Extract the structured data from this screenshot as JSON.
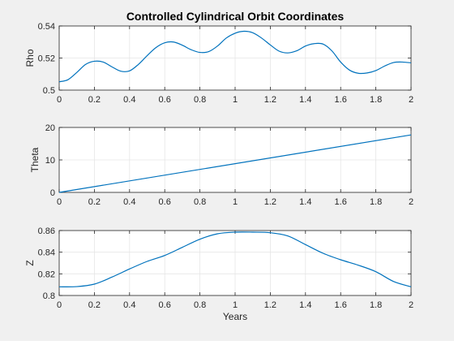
{
  "figure": {
    "background": "#f0f0f0",
    "axes_background": "#ffffff",
    "line_color": "#0072bd"
  },
  "chart_data": [
    {
      "type": "line",
      "title": "Controlled Cylindrical Orbit Coordinates",
      "xlabel": "",
      "ylabel": "Rho",
      "xlim": [
        0,
        2
      ],
      "ylim": [
        0.5,
        0.54
      ],
      "xticks": [
        "0",
        "0.2",
        "0.4",
        "0.6",
        "0.8",
        "1",
        "1.2",
        "1.4",
        "1.6",
        "1.8",
        "2"
      ],
      "yticks": [
        "0.5",
        "0.52",
        "0.54"
      ],
      "grid": true,
      "x": [
        0,
        0.05,
        0.1,
        0.15,
        0.2,
        0.25,
        0.3,
        0.35,
        0.4,
        0.45,
        0.5,
        0.55,
        0.6,
        0.65,
        0.7,
        0.75,
        0.8,
        0.85,
        0.9,
        0.95,
        1.0,
        1.05,
        1.1,
        1.15,
        1.2,
        1.25,
        1.3,
        1.35,
        1.4,
        1.45,
        1.5,
        1.55,
        1.6,
        1.65,
        1.7,
        1.75,
        1.8,
        1.85,
        1.9,
        1.95,
        2.0
      ],
      "y": [
        0.5052,
        0.5065,
        0.511,
        0.516,
        0.518,
        0.5175,
        0.5145,
        0.5118,
        0.512,
        0.516,
        0.5215,
        0.5265,
        0.5295,
        0.53,
        0.528,
        0.5252,
        0.5235,
        0.524,
        0.5275,
        0.5325,
        0.5355,
        0.5367,
        0.5358,
        0.5325,
        0.5282,
        0.5243,
        0.5232,
        0.5245,
        0.5275,
        0.529,
        0.5287,
        0.5245,
        0.5175,
        0.5125,
        0.5105,
        0.5107,
        0.5122,
        0.515,
        0.5172,
        0.5175,
        0.517
      ]
    },
    {
      "type": "line",
      "title": "",
      "xlabel": "",
      "ylabel": "Theta",
      "xlim": [
        0,
        2
      ],
      "ylim": [
        0,
        20
      ],
      "xticks": [
        "0",
        "0.2",
        "0.4",
        "0.6",
        "0.8",
        "1",
        "1.2",
        "1.4",
        "1.6",
        "1.8",
        "2"
      ],
      "yticks": [
        "0",
        "10",
        "20"
      ],
      "grid": true,
      "x": [
        0,
        2
      ],
      "y": [
        0,
        17.7
      ]
    },
    {
      "type": "line",
      "title": "",
      "xlabel": "Years",
      "ylabel": "Z",
      "xlim": [
        0,
        2
      ],
      "ylim": [
        0.8,
        0.86
      ],
      "xticks": [
        "0",
        "0.2",
        "0.4",
        "0.6",
        "0.8",
        "1",
        "1.2",
        "1.4",
        "1.6",
        "1.8",
        "2"
      ],
      "yticks": [
        "0.8",
        "0.82",
        "0.84",
        "0.86"
      ],
      "grid": true,
      "x": [
        0,
        0.1,
        0.2,
        0.3,
        0.4,
        0.5,
        0.6,
        0.7,
        0.8,
        0.9,
        1.0,
        1.1,
        1.2,
        1.3,
        1.4,
        1.5,
        1.6,
        1.7,
        1.8,
        1.9,
        2.0
      ],
      "y": [
        0.808,
        0.8082,
        0.8105,
        0.817,
        0.8245,
        0.8315,
        0.837,
        0.8445,
        0.852,
        0.857,
        0.8585,
        0.8585,
        0.858,
        0.855,
        0.847,
        0.839,
        0.833,
        0.828,
        0.822,
        0.813,
        0.808
      ]
    }
  ]
}
